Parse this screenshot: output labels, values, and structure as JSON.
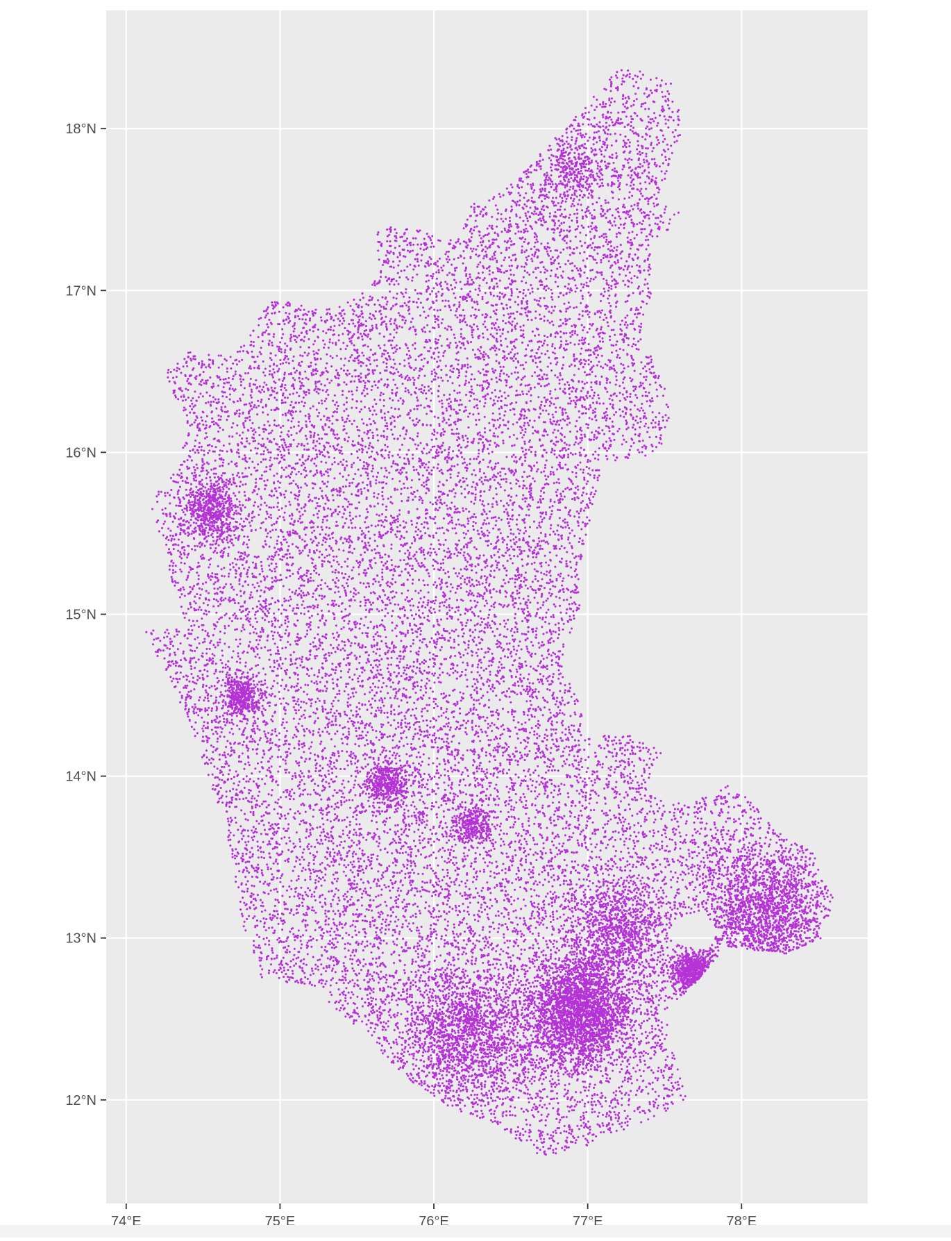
{
  "chart_data": {
    "type": "scatter",
    "title": "",
    "xlabel": "",
    "ylabel": "",
    "xlim": [
      73.87,
      78.82
    ],
    "ylim": [
      11.36,
      18.73
    ],
    "grid": true,
    "legend": "none",
    "x_ticks": [
      {
        "value": 74,
        "label": "74°E"
      },
      {
        "value": 75,
        "label": "75°E"
      },
      {
        "value": 76,
        "label": "76°E"
      },
      {
        "value": 77,
        "label": "77°E"
      },
      {
        "value": 78,
        "label": "78°E"
      }
    ],
    "y_ticks": [
      {
        "value": 12,
        "label": "12°N"
      },
      {
        "value": 13,
        "label": "13°N"
      },
      {
        "value": 14,
        "label": "14°N"
      },
      {
        "value": 15,
        "label": "15°N"
      },
      {
        "value": 16,
        "label": "16°N"
      },
      {
        "value": 17,
        "label": "17°N"
      },
      {
        "value": 18,
        "label": "18°N"
      }
    ],
    "series": [
      {
        "color": "#b533d6",
        "point_count": 28000,
        "region_outline": [
          [
            76.35,
            17.55
          ],
          [
            76.62,
            17.78
          ],
          [
            76.95,
            18.1
          ],
          [
            77.22,
            18.4
          ],
          [
            77.4,
            18.33
          ],
          [
            77.55,
            18.28
          ],
          [
            77.62,
            18.0
          ],
          [
            77.45,
            17.55
          ],
          [
            77.62,
            17.5
          ],
          [
            77.55,
            17.38
          ],
          [
            77.4,
            17.3
          ],
          [
            77.42,
            16.95
          ],
          [
            77.35,
            16.75
          ],
          [
            77.45,
            16.5
          ],
          [
            77.55,
            16.3
          ],
          [
            77.48,
            16.05
          ],
          [
            77.35,
            15.95
          ],
          [
            77.1,
            15.95
          ],
          [
            77.05,
            15.75
          ],
          [
            76.95,
            15.3
          ],
          [
            76.95,
            15.05
          ],
          [
            76.9,
            14.9
          ],
          [
            76.82,
            14.7
          ],
          [
            76.95,
            14.45
          ],
          [
            76.98,
            14.25
          ],
          [
            77.3,
            14.25
          ],
          [
            77.48,
            14.15
          ],
          [
            77.38,
            13.9
          ],
          [
            77.65,
            13.82
          ],
          [
            77.92,
            13.95
          ],
          [
            78.05,
            13.85
          ],
          [
            78.3,
            13.6
          ],
          [
            78.45,
            13.55
          ],
          [
            78.6,
            13.25
          ],
          [
            78.52,
            13.0
          ],
          [
            78.28,
            12.9
          ],
          [
            77.9,
            12.95
          ],
          [
            77.68,
            12.7
          ],
          [
            77.5,
            12.55
          ],
          [
            77.55,
            12.3
          ],
          [
            77.65,
            12.0
          ],
          [
            77.45,
            11.9
          ],
          [
            77.2,
            11.8
          ],
          [
            76.95,
            11.7
          ],
          [
            76.7,
            11.65
          ],
          [
            76.4,
            11.85
          ],
          [
            76.1,
            11.95
          ],
          [
            75.8,
            12.15
          ],
          [
            75.5,
            12.45
          ],
          [
            75.2,
            12.7
          ],
          [
            74.88,
            12.75
          ],
          [
            74.75,
            13.1
          ],
          [
            74.68,
            13.55
          ],
          [
            74.55,
            13.95
          ],
          [
            74.42,
            14.3
          ],
          [
            74.28,
            14.6
          ],
          [
            74.12,
            14.9
          ],
          [
            74.4,
            14.92
          ],
          [
            74.3,
            15.2
          ],
          [
            74.2,
            15.55
          ],
          [
            74.15,
            15.7
          ],
          [
            74.3,
            15.85
          ],
          [
            74.4,
            16.15
          ],
          [
            74.25,
            16.5
          ],
          [
            74.4,
            16.62
          ],
          [
            74.7,
            16.6
          ],
          [
            74.95,
            16.95
          ],
          [
            75.28,
            16.88
          ],
          [
            75.5,
            16.95
          ],
          [
            75.65,
            17.1
          ],
          [
            75.62,
            17.4
          ],
          [
            75.88,
            17.38
          ],
          [
            76.15,
            17.3
          ],
          [
            76.25,
            17.55
          ]
        ],
        "holes": [
          [
            [
              77.55,
              13.1
            ],
            [
              77.75,
              13.18
            ],
            [
              77.85,
              13.02
            ],
            [
              77.72,
              12.92
            ],
            [
              77.55,
              12.98
            ]
          ]
        ],
        "dense_clusters": [
          {
            "lon": 76.95,
            "lat": 12.55,
            "radius": 0.28,
            "weight": 0.09
          },
          {
            "lon": 77.68,
            "lat": 12.8,
            "radius": 0.1,
            "weight": 0.02
          },
          {
            "lon": 74.55,
            "lat": 15.65,
            "radius": 0.14,
            "weight": 0.02
          },
          {
            "lon": 74.75,
            "lat": 14.5,
            "radius": 0.1,
            "weight": 0.015
          },
          {
            "lon": 76.25,
            "lat": 13.7,
            "radius": 0.1,
            "weight": 0.01
          },
          {
            "lon": 75.7,
            "lat": 13.95,
            "radius": 0.12,
            "weight": 0.015
          },
          {
            "lon": 78.15,
            "lat": 13.15,
            "radius": 0.35,
            "weight": 0.05
          },
          {
            "lon": 77.2,
            "lat": 13.05,
            "radius": 0.25,
            "weight": 0.03
          },
          {
            "lon": 76.2,
            "lat": 12.4,
            "radius": 0.35,
            "weight": 0.05
          },
          {
            "lon": 76.9,
            "lat": 17.75,
            "radius": 0.18,
            "weight": 0.01
          }
        ]
      }
    ]
  }
}
